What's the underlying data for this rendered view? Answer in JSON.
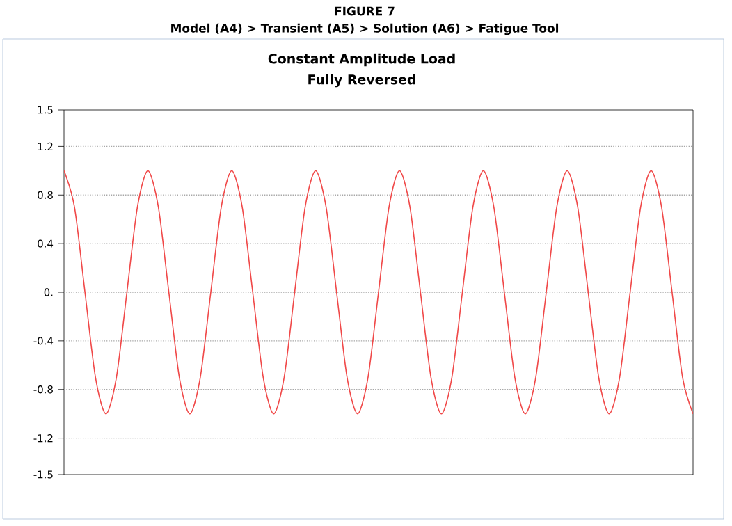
{
  "chart_data": {
    "type": "line",
    "title": "Constant Amplitude Load",
    "subtitle": "Fully Reversed",
    "annotations": [
      "FIGURE 7",
      "Model (A4) > Transient (A5) > Solution (A6) > Fatigue Tool"
    ],
    "categories": [
      null,
      null,
      null,
      null,
      null,
      null,
      null,
      null,
      null,
      null,
      null,
      null,
      null,
      null,
      null,
      null,
      null,
      null,
      null,
      null,
      null,
      null,
      null,
      null,
      null,
      null,
      null,
      null,
      null,
      null,
      null,
      null,
      null,
      null,
      null,
      null,
      null,
      null,
      null,
      null,
      null,
      null,
      null,
      null,
      null,
      null,
      null,
      null,
      null,
      null,
      null,
      null,
      null,
      null,
      null,
      null,
      null,
      null,
      null,
      null,
      null
    ],
    "series": [
      {
        "color": "#f04848",
        "values": [
          1,
          0.7,
          0,
          -0.7,
          -1,
          -0.7,
          0,
          0.7,
          1,
          0.7,
          0,
          -0.7,
          -1,
          -0.7,
          0,
          0.7,
          1,
          0.7,
          0,
          -0.7,
          -1,
          -0.7,
          0,
          0.7,
          1,
          0.7,
          0,
          -0.7,
          -1,
          -0.7,
          0,
          0.7,
          1,
          0.7,
          0,
          -0.7,
          -1,
          -0.7,
          0,
          0.7,
          1,
          0.7,
          0,
          -0.7,
          -1,
          -0.7,
          0,
          0.7,
          1,
          0.7,
          0,
          -0.7,
          -1,
          -0.7,
          0,
          0.7,
          1,
          0.7,
          0,
          -0.7,
          -1
        ]
      }
    ],
    "ylim": [
      -1.5,
      1.5
    ],
    "yticks": [
      -1.5,
      -1.2,
      -0.8,
      -0.4,
      {
        "value": 0,
        "label": "0."
      },
      0.4,
      0.8,
      1.2,
      1.5
    ],
    "grid": "y",
    "marker": "none",
    "line_style": "solid"
  }
}
